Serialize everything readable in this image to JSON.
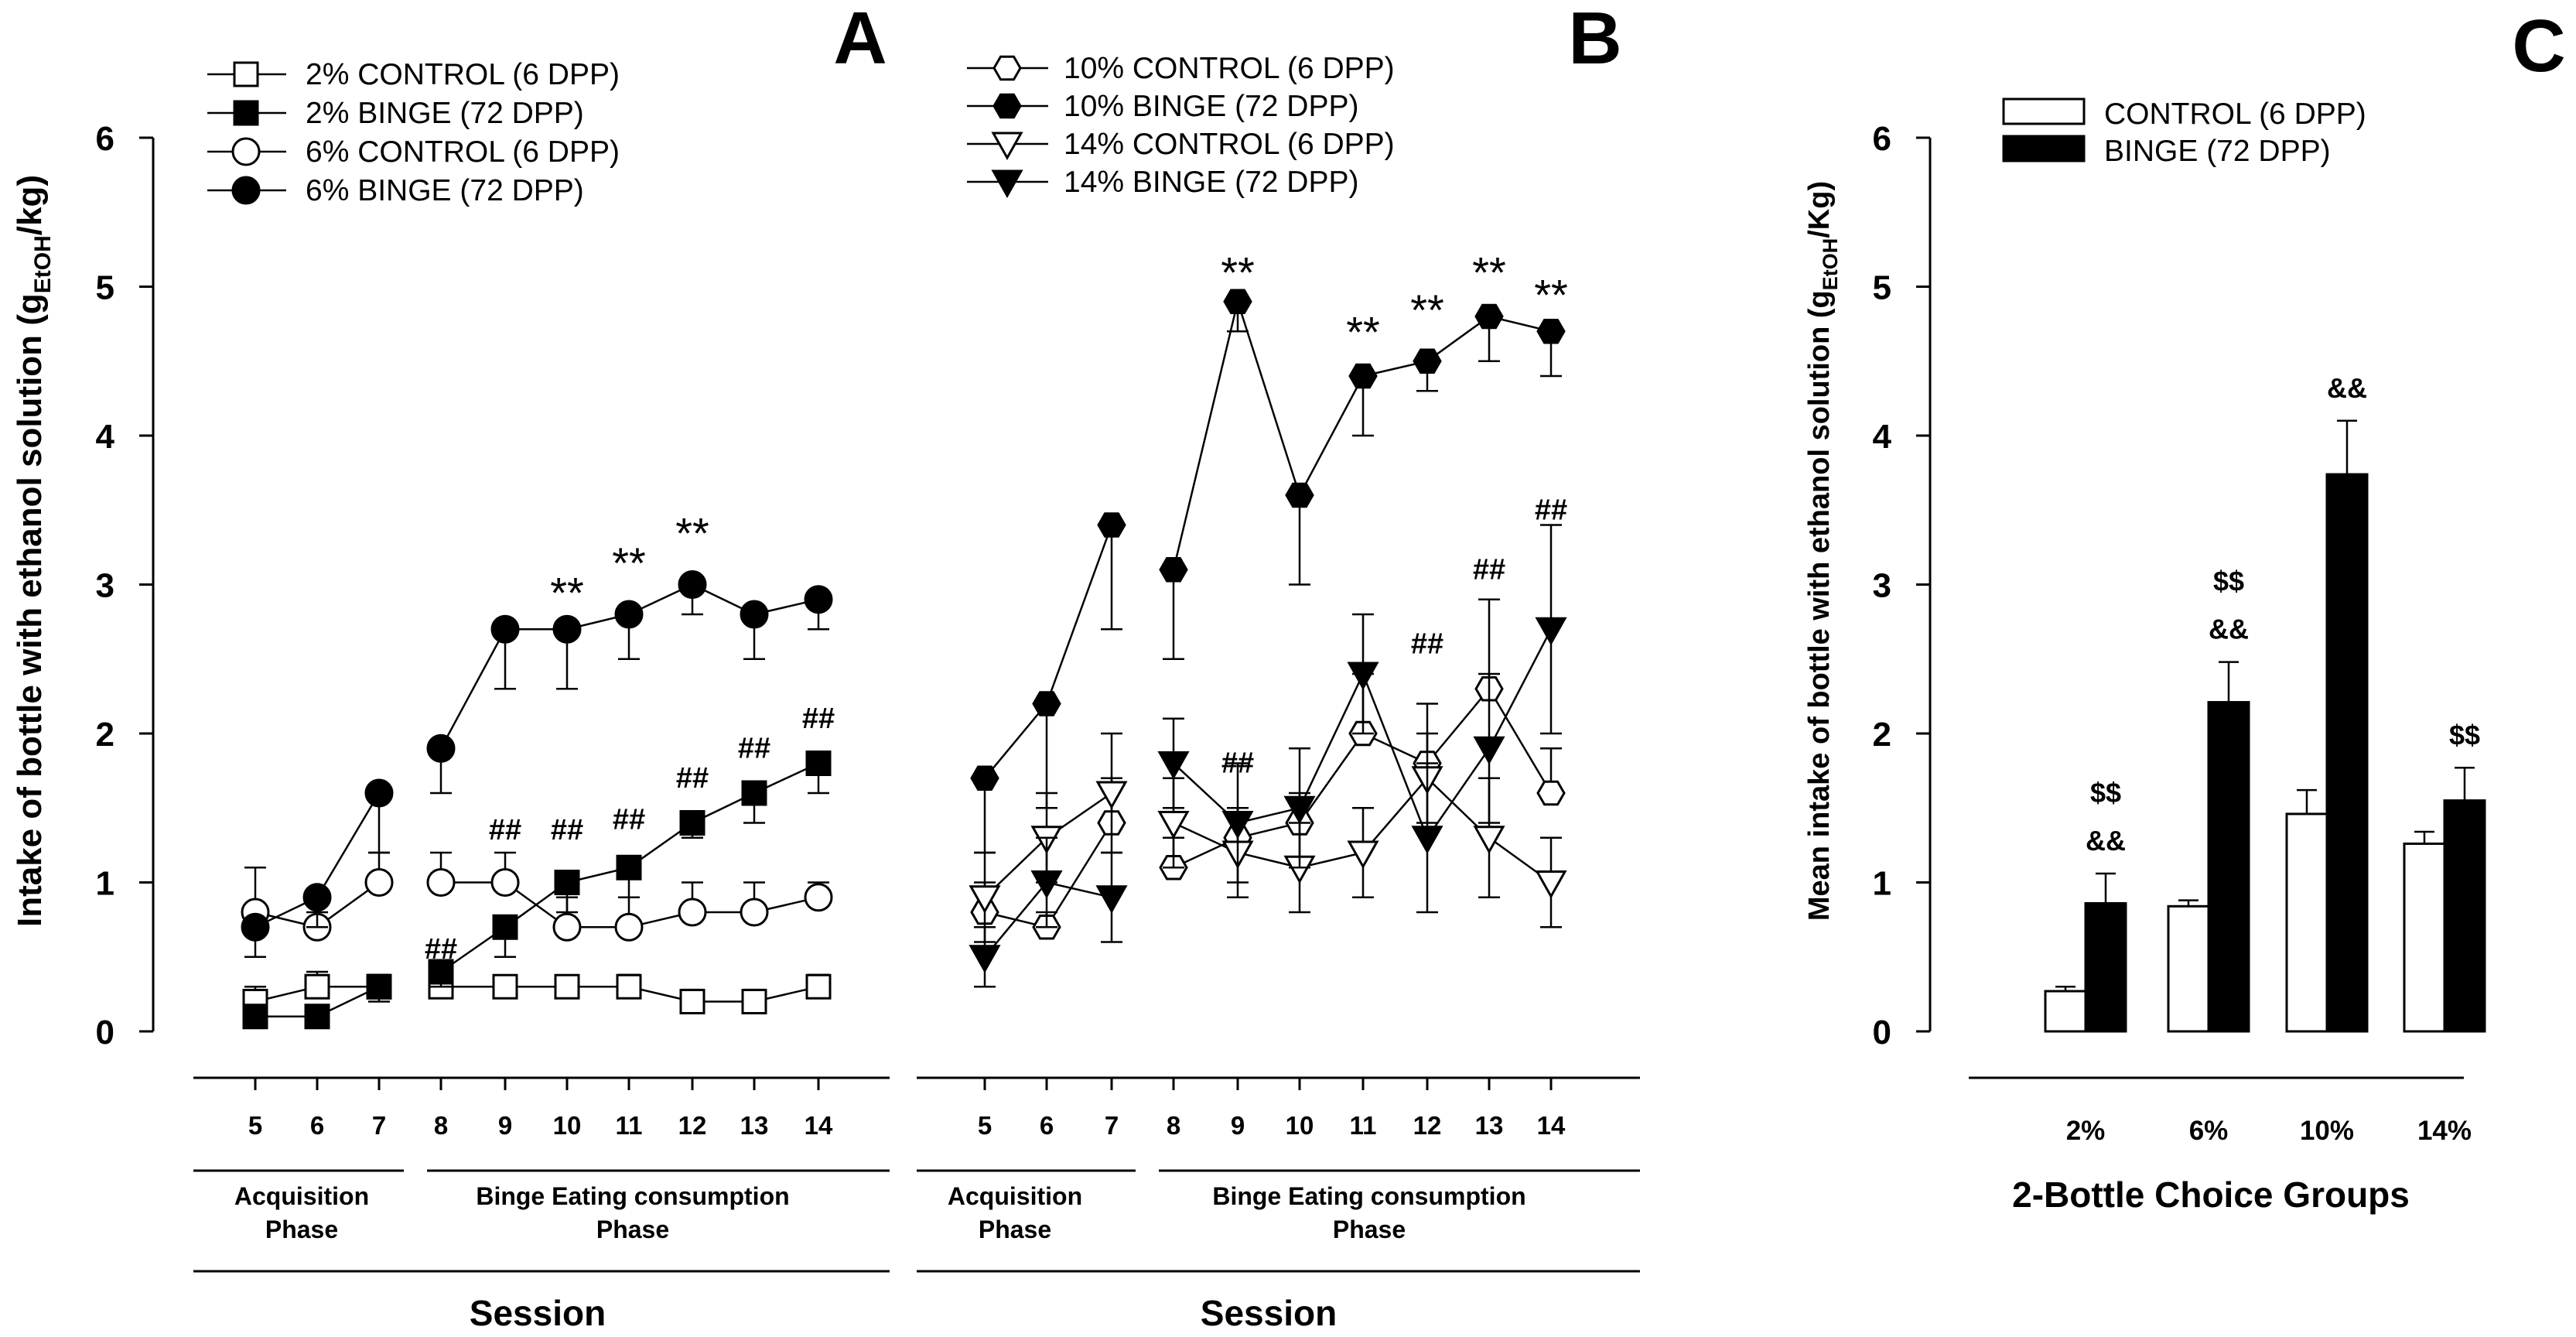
{
  "panels": {
    "A": {
      "letter": "A",
      "ylabel_main": "Intake of bottle with ethanol solution (g",
      "ylabel_sub": "EtOH",
      "ylabel_end": "/kg)",
      "y_ticks": [
        "0",
        "1",
        "2",
        "3",
        "4",
        "5",
        "6"
      ],
      "x_ticks": [
        "5",
        "6",
        "7",
        "8",
        "9",
        "10",
        "11",
        "12",
        "13",
        "14"
      ],
      "phase_acq": [
        "Acquisition",
        "Phase"
      ],
      "phase_binge": [
        "Binge Eating consumption",
        "Phase"
      ],
      "xlabel": "Session",
      "legend": [
        "2% CONTROL (6 DPP)",
        "2% BINGE (72 DPP)",
        "6% CONTROL (6 DPP)",
        "6% BINGE (72 DPP)"
      ]
    },
    "B": {
      "letter": "B",
      "x_ticks": [
        "5",
        "6",
        "7",
        "8",
        "9",
        "10",
        "11",
        "12",
        "13",
        "14"
      ],
      "phase_acq": [
        "Acquisition",
        "Phase"
      ],
      "phase_binge": [
        "Binge Eating consumption",
        "Phase"
      ],
      "xlabel": "Session",
      "legend": [
        "10% CONTROL (6 DPP)",
        "10% BINGE (72 DPP)",
        "14% CONTROL (6 DPP)",
        "14% BINGE (72 DPP)"
      ]
    },
    "C": {
      "letter": "C",
      "ylabel_main": "Mean intake of bottle with ethanol solution (g",
      "ylabel_sub": "EtOH",
      "ylabel_end": "/Kg)",
      "y_ticks": [
        "0",
        "1",
        "2",
        "3",
        "4",
        "5",
        "6"
      ],
      "xlabel": "2-Bottle Choice Groups",
      "legend": [
        "CONTROL (6 DPP)",
        "BINGE (72 DPP)"
      ]
    }
  },
  "chart_data": [
    {
      "panel": "A",
      "type": "line",
      "ylabel": "Intake of bottle with ethanol solution (gEtOH/kg)",
      "xlabel": "Session",
      "ylim": [
        0,
        6
      ],
      "x": [
        5,
        6,
        7,
        8,
        9,
        10,
        11,
        12,
        13,
        14
      ],
      "series": [
        {
          "name": "2% CONTROL (6 DPP)",
          "marker": "square-open",
          "segments": [
            [
              0,
              2
            ],
            [
              3,
              9
            ]
          ],
          "values": [
            0.2,
            0.3,
            0.3,
            0.3,
            0.3,
            0.3,
            0.3,
            0.2,
            0.2,
            0.3
          ],
          "errors": [
            0.1,
            0.1,
            0.08,
            0.05,
            0.05,
            0.05,
            0.08,
            0.08,
            0.08,
            0.08
          ],
          "err_dir": "up"
        },
        {
          "name": "2% BINGE (72 DPP)",
          "marker": "square-filled",
          "segments": [
            [
              0,
              2
            ],
            [
              3,
              9
            ]
          ],
          "values": [
            0.1,
            0.1,
            0.3,
            0.4,
            0.7,
            1.0,
            1.1,
            1.4,
            1.6,
            1.8
          ],
          "errors": [
            0.05,
            0.05,
            0.1,
            0.1,
            0.2,
            0.2,
            0.2,
            0.1,
            0.2,
            0.2
          ],
          "err_dir": "down"
        },
        {
          "name": "6% CONTROL (6 DPP)",
          "marker": "circle-open",
          "segments": [
            [
              0,
              2
            ],
            [
              3,
              9
            ]
          ],
          "values": [
            0.8,
            0.7,
            1.0,
            1.0,
            1.0,
            0.7,
            0.7,
            0.8,
            0.8,
            0.9
          ],
          "errors": [
            0.3,
            0.1,
            0.2,
            0.2,
            0.2,
            0.2,
            0.2,
            0.2,
            0.2,
            0.1
          ],
          "err_dir": "up"
        },
        {
          "name": "6% BINGE (72 DPP)",
          "marker": "circle-filled",
          "segments": [
            [
              0,
              2
            ],
            [
              3,
              9
            ]
          ],
          "values": [
            0.7,
            0.9,
            1.6,
            1.9,
            2.7,
            2.7,
            2.8,
            3.0,
            2.8,
            2.9
          ],
          "errors": [
            0.2,
            0.2,
            0.4,
            0.3,
            0.4,
            0.4,
            0.3,
            0.2,
            0.3,
            0.2
          ],
          "err_dir": "down"
        }
      ],
      "annotations": [
        {
          "text": "**",
          "x": 10,
          "y": 3.0
        },
        {
          "text": "**",
          "x": 11,
          "y": 3.2
        },
        {
          "text": "**",
          "x": 12,
          "y": 3.4
        },
        {
          "text": "##",
          "x": 8,
          "y": 0.55
        },
        {
          "text": "##",
          "x": 9,
          "y": 1.35
        },
        {
          "text": "##",
          "x": 10,
          "y": 1.35
        },
        {
          "text": "##",
          "x": 11,
          "y": 1.42
        },
        {
          "text": "##",
          "x": 12,
          "y": 1.7
        },
        {
          "text": "##",
          "x": 13,
          "y": 1.9
        },
        {
          "text": "##",
          "x": 14,
          "y": 2.1
        }
      ]
    },
    {
      "panel": "B",
      "type": "line",
      "xlabel": "Session",
      "ylim": [
        0,
        6
      ],
      "x": [
        5,
        6,
        7,
        8,
        9,
        10,
        11,
        12,
        13,
        14
      ],
      "series": [
        {
          "name": "10% CONTROL (6 DPP)",
          "marker": "hexagon-open",
          "segments": [
            [
              0,
              2
            ],
            [
              3,
              9
            ]
          ],
          "values": [
            0.8,
            0.7,
            1.4,
            1.1,
            1.3,
            1.4,
            2.0,
            1.8,
            2.3,
            1.6
          ],
          "errors": [
            0.2,
            0.1,
            0.3,
            0.2,
            0.2,
            0.2,
            0.4,
            0.4,
            0.6,
            0.3
          ],
          "err_dir": "up"
        },
        {
          "name": "10% BINGE (72 DPP)",
          "marker": "hexagon-filled",
          "segments": [
            [
              0,
              2
            ],
            [
              3,
              9
            ]
          ],
          "values": [
            1.7,
            2.2,
            3.4,
            3.1,
            4.9,
            3.6,
            4.4,
            4.5,
            4.8,
            4.7
          ],
          "errors": [
            0.5,
            0.7,
            0.7,
            0.6,
            0.2,
            0.6,
            0.4,
            0.2,
            0.3,
            0.3
          ],
          "err_dir": "down"
        },
        {
          "name": "14% CONTROL (6 DPP)",
          "marker": "triangle-down-open",
          "segments": [
            [
              0,
              2
            ],
            [
              3,
              9
            ]
          ],
          "values": [
            0.9,
            1.3,
            1.6,
            1.4,
            1.2,
            1.1,
            1.2,
            1.7,
            1.3,
            1.0
          ],
          "errors": [
            0.3,
            0.3,
            0.4,
            0.3,
            0.3,
            0.3,
            0.3,
            0.3,
            0.4,
            0.3
          ],
          "err_dir": "both"
        },
        {
          "name": "14% BINGE (72 DPP)",
          "marker": "triangle-down-filled",
          "segments": [
            [
              0,
              2
            ],
            [
              3,
              9
            ]
          ],
          "values": [
            0.5,
            1.0,
            0.9,
            1.8,
            1.4,
            1.5,
            2.4,
            1.3,
            1.9,
            2.7
          ],
          "errors": [
            0.2,
            0.3,
            0.3,
            0.3,
            0.4,
            0.4,
            0.4,
            0.5,
            0.5,
            0.7
          ],
          "err_dir": "both"
        }
      ],
      "annotations": [
        {
          "text": "**",
          "x": 9,
          "y": 5.15
        },
        {
          "text": "**",
          "x": 11,
          "y": 4.75
        },
        {
          "text": "**",
          "x": 12,
          "y": 4.9
        },
        {
          "text": "**",
          "x": 13,
          "y": 5.15
        },
        {
          "text": "**",
          "x": 14,
          "y": 5.0
        },
        {
          "text": "##",
          "x": 9,
          "y": 1.8
        },
        {
          "text": "##",
          "x": 12,
          "y": 2.6
        },
        {
          "text": "##",
          "x": 13,
          "y": 3.1
        },
        {
          "text": "##",
          "x": 14,
          "y": 3.5
        }
      ]
    },
    {
      "panel": "C",
      "type": "bar",
      "xlabel": "2-Bottle Choice Groups",
      "ylabel": "Mean intake of bottle with ethanol solution (gEtOH/Kg)",
      "ylim": [
        0,
        6
      ],
      "categories": [
        "2%",
        "6%",
        "10%",
        "14%"
      ],
      "series": [
        {
          "name": "CONTROL (6 DPP)",
          "color": "#ffffff",
          "values": [
            0.27,
            0.84,
            1.46,
            1.26
          ],
          "errors": [
            0.03,
            0.04,
            0.16,
            0.08
          ]
        },
        {
          "name": "BINGE (72 DPP)",
          "color": "#000000",
          "values": [
            0.86,
            2.21,
            3.74,
            1.55
          ],
          "errors": [
            0.2,
            0.27,
            0.36,
            0.22
          ]
        }
      ],
      "annotations": [
        {
          "category": "2%",
          "lines": [
            "$$",
            "&&"
          ]
        },
        {
          "category": "6%",
          "lines": [
            "$$",
            "&&"
          ]
        },
        {
          "category": "10%",
          "lines": [
            "&&"
          ]
        },
        {
          "category": "14%",
          "lines": [
            "$$"
          ]
        }
      ]
    }
  ]
}
